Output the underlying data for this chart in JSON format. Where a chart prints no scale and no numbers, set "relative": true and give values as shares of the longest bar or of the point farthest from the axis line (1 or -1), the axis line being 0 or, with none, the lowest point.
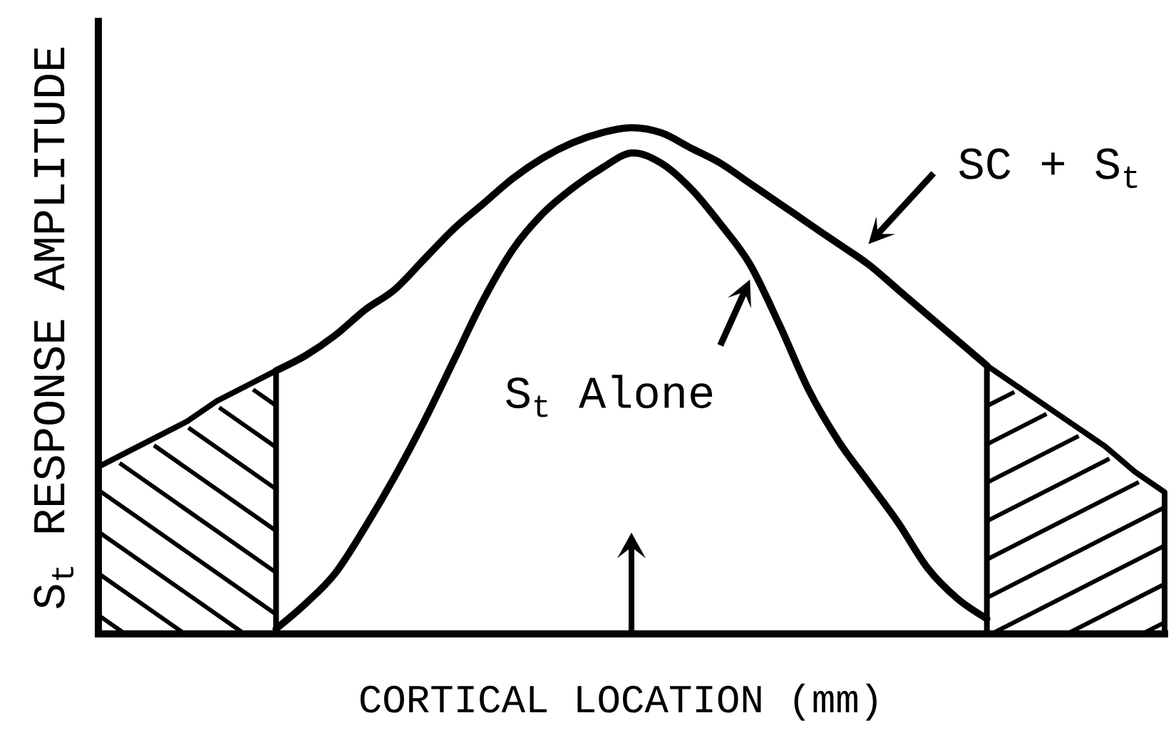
{
  "chart_data": {
    "type": "line",
    "relative": true,
    "marker": "none",
    "xlabel": "CORTICAL LOCATION (mm)",
    "ylabel": "S$_{t}$ RESPONSE AMPLITUDE",
    "categories": [
      null,
      null,
      null,
      null,
      null,
      null,
      null,
      null,
      null,
      null,
      null,
      null,
      null,
      null,
      null,
      null,
      null,
      null,
      null,
      null,
      null,
      null,
      null,
      null,
      null,
      null,
      null,
      null,
      null,
      null,
      null,
      null,
      null,
      null,
      null,
      null,
      null
    ],
    "series": [
      {
        "name": "SC + S$_{t}$",
        "color": "#000000",
        "values": [
          null,
          null,
          null,
          null,
          null,
          null,
          0.52,
          0.55,
          0.59,
          0.64,
          0.68,
          0.74,
          0.8,
          0.85,
          0.9,
          0.94,
          0.97,
          0.99,
          1,
          0.99,
          0.96,
          0.93,
          0.89,
          0.85,
          0.81,
          0.77,
          0.73,
          0.68,
          0.63,
          0.58,
          0.53,
          null,
          null,
          null,
          null,
          null,
          null
        ]
      },
      {
        "name": "S$_{t}$ Alone",
        "color": "#000000",
        "values": [
          null,
          null,
          null,
          null,
          null,
          null,
          0.01,
          0.06,
          0.12,
          0.21,
          0.31,
          0.42,
          0.54,
          0.66,
          0.76,
          0.83,
          0.88,
          0.92,
          0.95,
          0.93,
          0.88,
          0.81,
          0.73,
          0.61,
          0.48,
          0.38,
          0.3,
          0.22,
          0.13,
          0.07,
          0.03,
          null,
          null,
          null,
          null,
          null,
          null
        ]
      },
      {
        "type": "area",
        "color": "#000000",
        "values": [
          0.33,
          0.36,
          0.39,
          0.42,
          0.46,
          0.49,
          0.52,
          null,
          null,
          null,
          null,
          null,
          null,
          null,
          null,
          null,
          null,
          null,
          null,
          null,
          null,
          null,
          null,
          null,
          null,
          null,
          null,
          null,
          null,
          null,
          null,
          null,
          null,
          null,
          null,
          null,
          null
        ]
      },
      {
        "type": "area",
        "color": "#000000",
        "values": [
          null,
          null,
          null,
          null,
          null,
          null,
          null,
          null,
          null,
          null,
          null,
          null,
          null,
          null,
          null,
          null,
          null,
          null,
          null,
          null,
          null,
          null,
          null,
          null,
          null,
          null,
          null,
          null,
          null,
          null,
          0.53,
          0.49,
          0.45,
          0.41,
          0.37,
          0.32,
          0.28
        ]
      }
    ]
  }
}
